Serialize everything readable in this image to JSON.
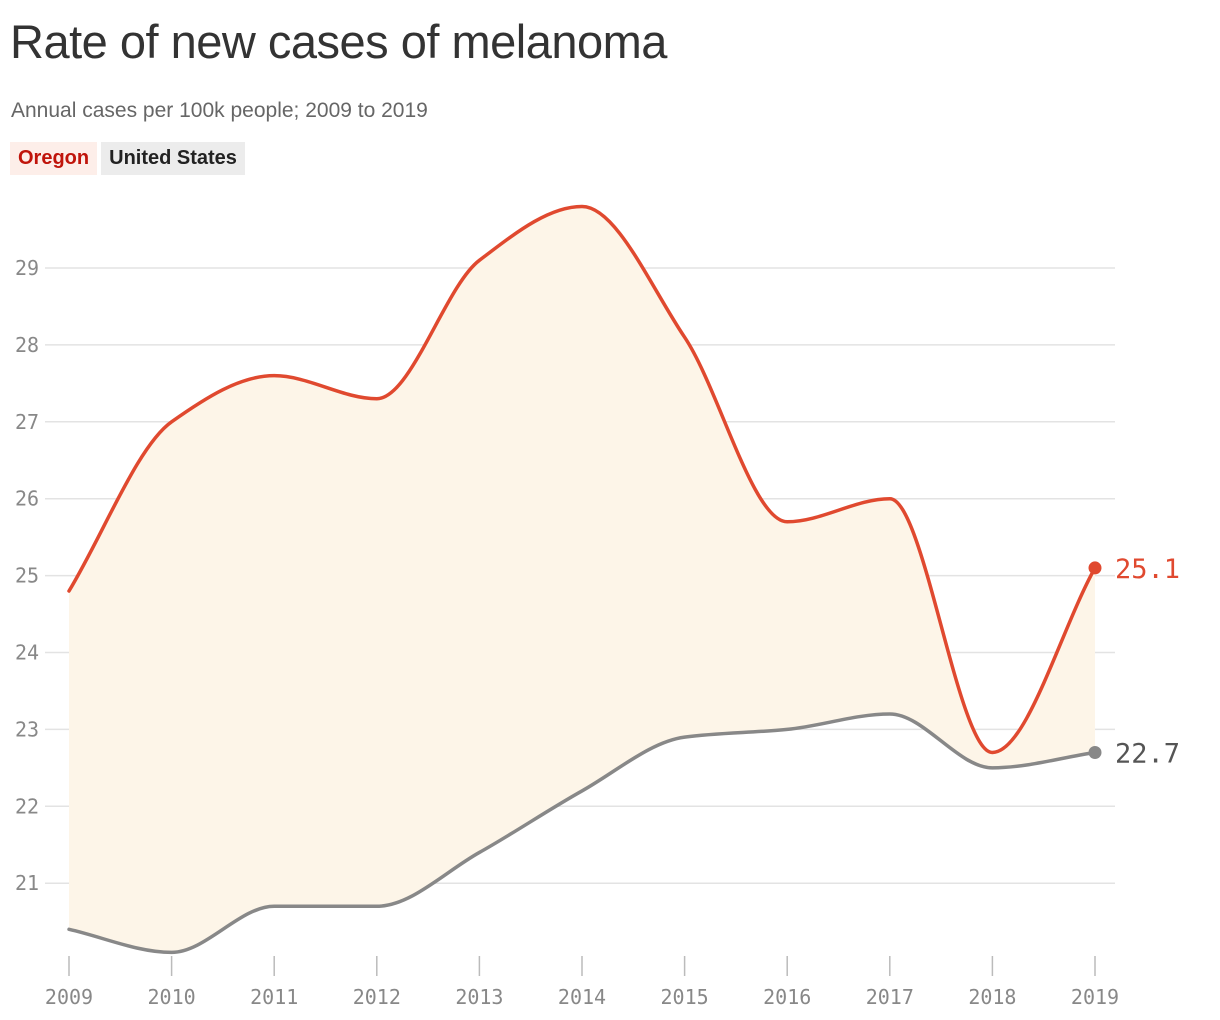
{
  "header": {
    "title": "Rate of new cases of melanoma",
    "subtitle": "Annual cases per 100k people; 2009 to 2019"
  },
  "legend": {
    "items": [
      {
        "label": "Oregon",
        "color": "#c0140b",
        "background": "#fdeee9"
      },
      {
        "label": "United States",
        "color": "#222222",
        "background": "#ececec"
      }
    ]
  },
  "colors": {
    "oregon_line": "#e0492f",
    "us_line": "#888888",
    "fill_between": "#fdf5e8",
    "grid": "#e3e3e3",
    "tick_text": "#888888",
    "baseline": "#bbbbbb"
  },
  "chart_data": {
    "type": "line",
    "title": "Rate of new cases of melanoma",
    "subtitle": "Annual cases per 100k people; 2009 to 2019",
    "x": [
      2009,
      2010,
      2011,
      2012,
      2013,
      2014,
      2015,
      2016,
      2017,
      2018,
      2019
    ],
    "x_tick_labels": [
      "2009",
      "2010",
      "2011",
      "2012",
      "2013",
      "2014",
      "2015",
      "2016",
      "2017",
      "2018",
      "2019"
    ],
    "y_ticks": [
      21,
      22,
      23,
      24,
      25,
      26,
      27,
      28,
      29
    ],
    "ylim": [
      20,
      30
    ],
    "grid": true,
    "fill_between_series": true,
    "series": [
      {
        "name": "Oregon",
        "color": "#e0492f",
        "values": [
          24.8,
          27.0,
          27.6,
          27.3,
          29.1,
          29.8,
          28.1,
          25.7,
          26.0,
          22.7,
          25.1
        ],
        "end_label": "25.1"
      },
      {
        "name": "United States",
        "color": "#888888",
        "values": [
          20.4,
          20.1,
          20.7,
          20.7,
          21.4,
          22.2,
          22.9,
          23.0,
          23.2,
          22.5,
          22.7
        ],
        "end_label": "22.7"
      }
    ],
    "legend_position": "top-left"
  }
}
